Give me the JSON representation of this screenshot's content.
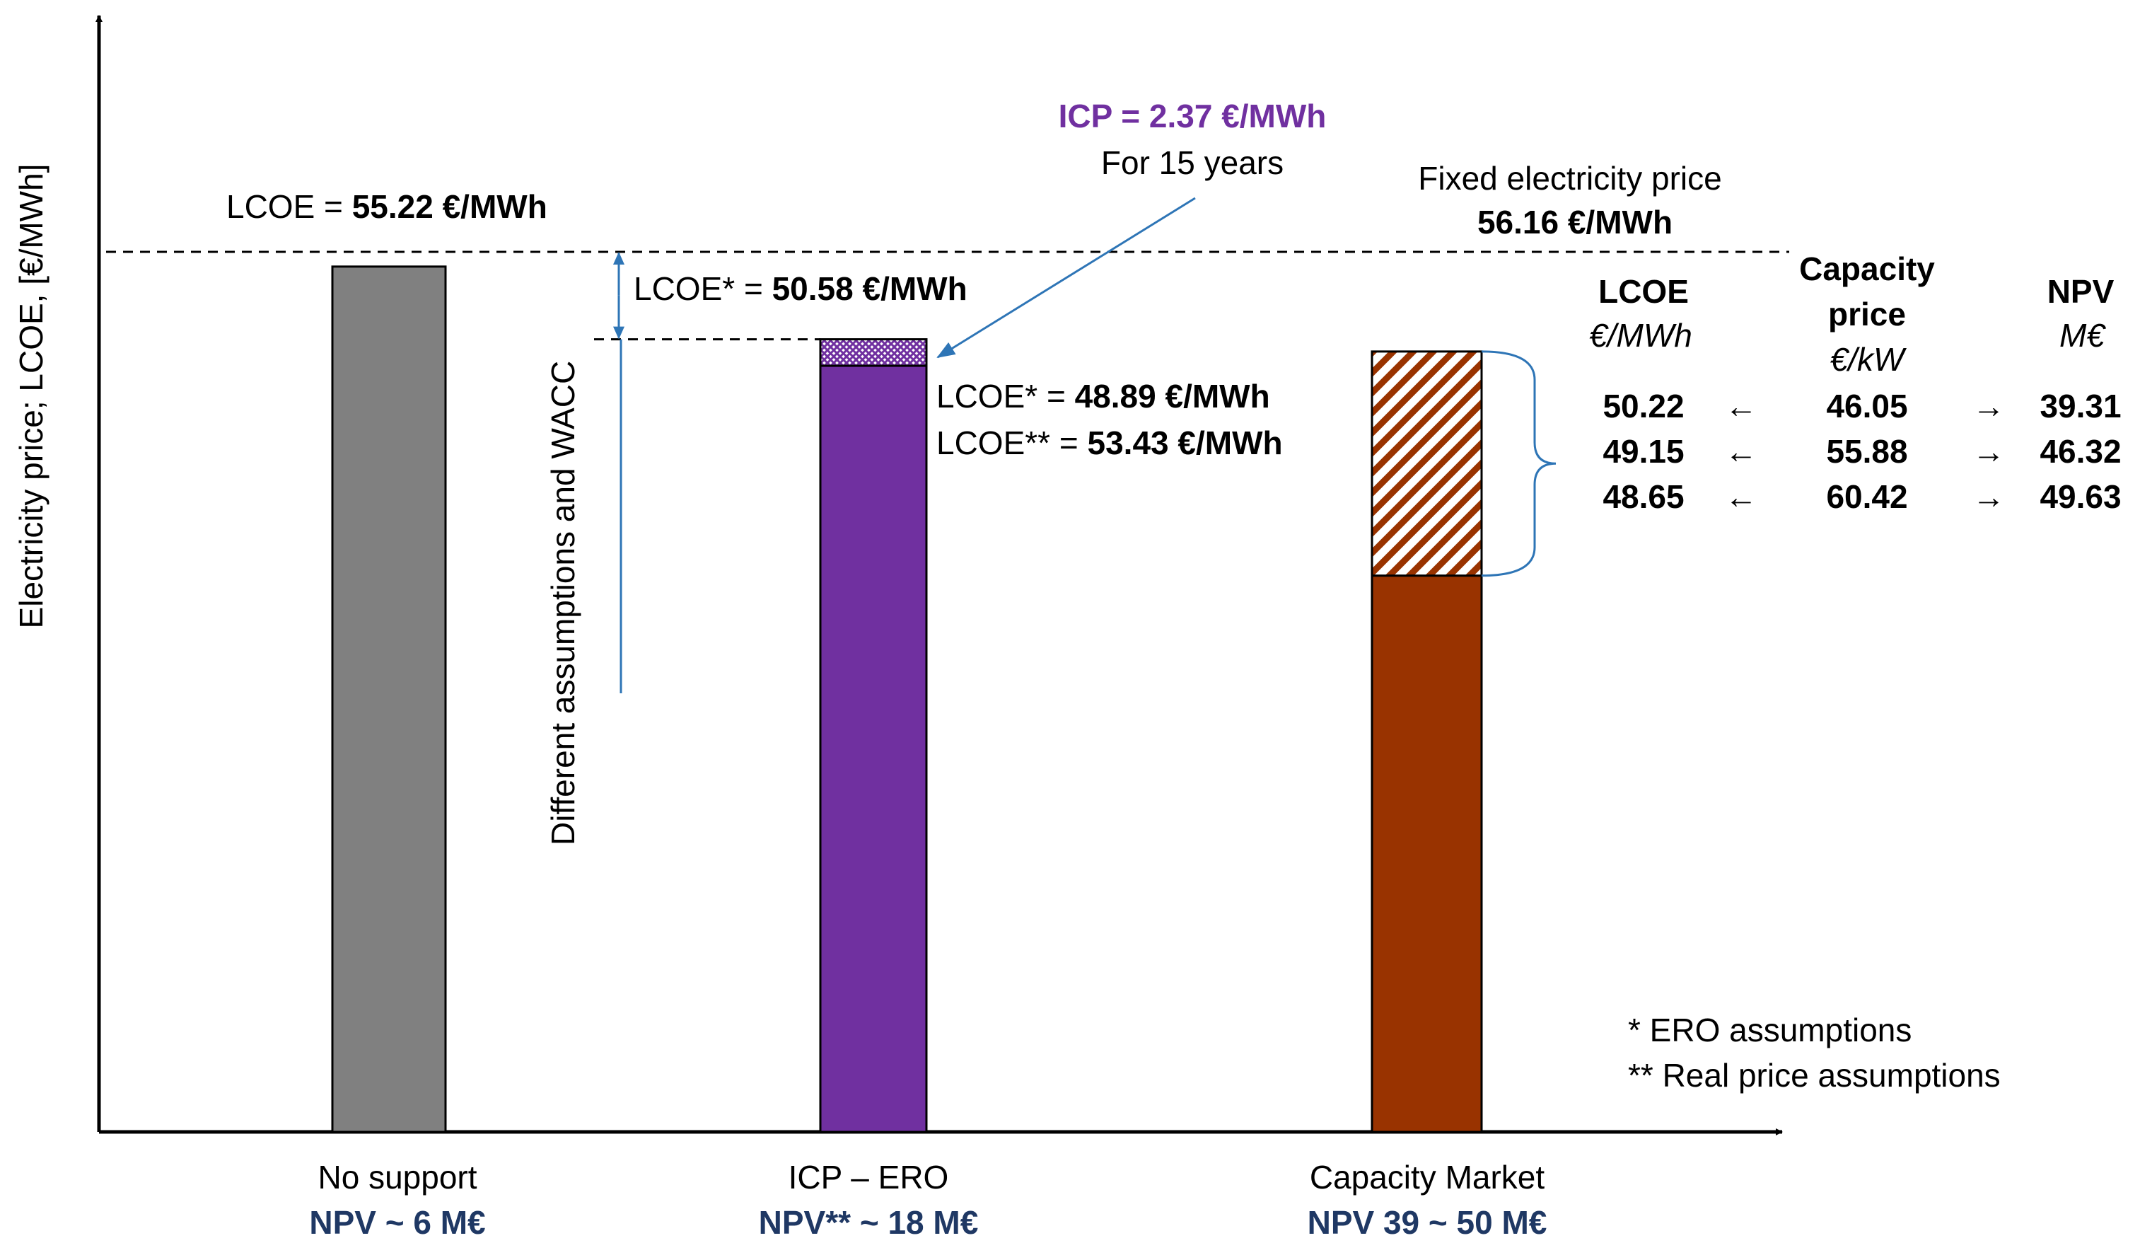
{
  "chart_data": {
    "type": "bar",
    "ylabel": "Electricity price; LCOE, [€/MWh]",
    "xlabel": "",
    "ylim": [
      0,
      65
    ],
    "grid": false,
    "categories": [
      {
        "name": "No support",
        "npv": "NPV ~ 6 M€"
      },
      {
        "name": "ICP – ERO",
        "npv": "NPV** ~ 18 M€"
      },
      {
        "name": "Capacity Market",
        "npv": "NPV 39 ~ 50 M€"
      }
    ],
    "bars": [
      {
        "category": "No support",
        "value": 55.22,
        "color": "#808080"
      },
      {
        "category": "ICP – ERO",
        "base": 48.89,
        "top": 50.58,
        "icp_value": 2.37,
        "color": "#7030a0",
        "hatch": "cross-hatch"
      },
      {
        "category": "Capacity Market",
        "base": 35.5,
        "top": 49.8,
        "color": "#993300",
        "hatch": "diagonal"
      }
    ],
    "reference_lines": [
      {
        "name": "Fixed electricity price",
        "value": 56.16
      },
      {
        "name": "LCOE*",
        "value": 50.58
      }
    ],
    "annotations": {
      "lcoe_no_support_prefix": "LCOE = ",
      "lcoe_no_support_value": "55.22 €/MWh",
      "fixed_price_line1": "Fixed electricity price",
      "fixed_price_line2": "56.16 €/MWh",
      "lcoe_star_prefix": "LCOE* = ",
      "lcoe_star_value": "50.58 €/MWh",
      "icp_title": "ICP = 2.37 €/MWh",
      "icp_subtitle": "For 15 years",
      "icp_lcoe1_prefix": "LCOE* = ",
      "icp_lcoe1_value": "48.89 €/MWh",
      "icp_lcoe2_prefix": "LCOE** = ",
      "icp_lcoe2_value": "53.43 €/MWh",
      "wacc_note": "Different assumptions and WACC"
    },
    "table": {
      "headers": {
        "lcoe": "LCOE",
        "lcoe_unit": "€/MWh",
        "capacity1": "Capacity",
        "capacity2": "price",
        "capacity_unit": "€/kW",
        "npv": "NPV",
        "npv_unit": "M€"
      },
      "arrow_left": "←",
      "arrow_right": "→",
      "rows": [
        {
          "lcoe": "50.22",
          "capacity_price": "46.05",
          "npv": "39.31"
        },
        {
          "lcoe": "49.15",
          "capacity_price": "55.88",
          "npv": "46.32"
        },
        {
          "lcoe": "48.65",
          "capacity_price": "60.42",
          "npv": "49.63"
        }
      ]
    },
    "footnotes": [
      "* ERO assumptions",
      "** Real price assumptions"
    ]
  },
  "colors": {
    "grey_bar": "#808080",
    "purple_bar": "#7030a0",
    "brown_bar": "#993300",
    "arrow_blue": "#2e75b6",
    "navy_text": "#1f3864"
  }
}
